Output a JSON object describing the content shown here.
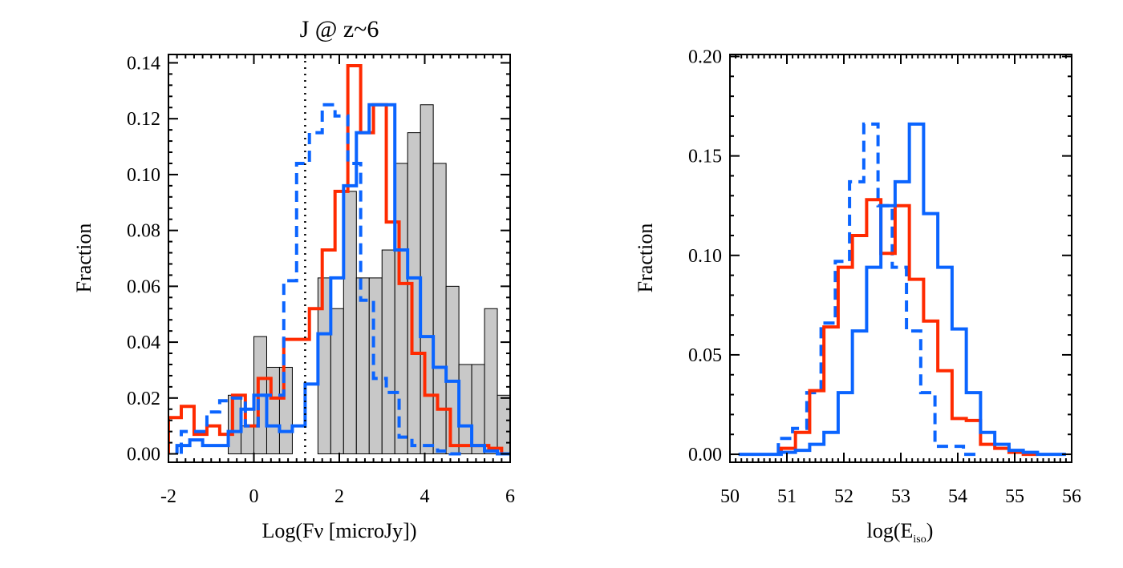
{
  "chart_data": [
    {
      "type": "histogram",
      "title": "J @ z~6",
      "xlabel": "Log(Fν [microJy])",
      "ylabel": "Fraction",
      "xlim": [
        -2,
        6
      ],
      "ylim": [
        -0.003,
        0.143
      ],
      "xticks": [
        -2,
        0,
        2,
        4,
        6
      ],
      "yticks": [
        0.0,
        0.02,
        0.04,
        0.06,
        0.08,
        0.1,
        0.12,
        0.14
      ],
      "ytick_labels": [
        "0.00",
        "0.02",
        "0.04",
        "0.06",
        "0.08",
        "0.10",
        "0.12",
        "0.14"
      ],
      "vline": {
        "x": 1.2,
        "style": "dotted",
        "color": "#000000"
      },
      "series": [
        {
          "style": "filled-bars",
          "fill": "#c8c8c8",
          "stroke": "#000000",
          "bin_width": 0.3,
          "x_start": -0.6,
          "values": [
            0.021,
            0.01,
            0.042,
            0.031,
            0.031,
            0.0,
            0.0,
            0.063,
            0.052,
            0.094,
            0.063,
            0.063,
            0.073,
            0.104,
            0.115,
            0.125,
            0.104,
            0.06,
            0.032,
            0.032,
            0.052,
            0.021,
            0.01,
            0.0,
            0.0,
            0.01,
            0.0
          ]
        },
        {
          "style": "step",
          "color": "#ff2a00",
          "dash": "solid",
          "bin_width": 0.3,
          "x_start": -2.0,
          "values": [
            0.013,
            0.017,
            0.007,
            0.01,
            0.007,
            0.021,
            0.01,
            0.027,
            0.02,
            0.041,
            0.041,
            0.052,
            0.073,
            0.094,
            0.139,
            0.115,
            0.125,
            0.083,
            0.061,
            0.036,
            0.021,
            0.016,
            0.003,
            0.003,
            0.003,
            0.002,
            0.0
          ]
        },
        {
          "style": "step",
          "color": "#0a64ff",
          "dash": "dashed",
          "bin_width": 0.3,
          "x_start": -1.7,
          "values": [
            0.008,
            0.008,
            0.015,
            0.019,
            0.02,
            0.01,
            0.021,
            0.021,
            0.062,
            0.104,
            0.115,
            0.125,
            0.121,
            0.104,
            0.055,
            0.027,
            0.022,
            0.006,
            0.003,
            0.003,
            0.001,
            0.0
          ]
        },
        {
          "style": "step",
          "color": "#0a64ff",
          "dash": "solid",
          "bin_width": 0.3,
          "x_start": -1.8,
          "values": [
            0.003,
            0.005,
            0.003,
            0.003,
            0.008,
            0.016,
            0.021,
            0.01,
            0.008,
            0.01,
            0.025,
            0.043,
            0.063,
            0.096,
            0.115,
            0.125,
            0.125,
            0.073,
            0.063,
            0.042,
            0.031,
            0.026,
            0.01,
            0.003,
            0.001,
            0.0,
            0.0
          ]
        }
      ]
    },
    {
      "type": "histogram",
      "title": "",
      "xlabel": "log(E",
      "xlabel_sub": "iso",
      "xlabel_tail": ")",
      "ylabel": "Fraction",
      "xlim": [
        50,
        56
      ],
      "ylim": [
        -0.004,
        0.201
      ],
      "xticks": [
        50,
        51,
        52,
        53,
        54,
        55,
        56
      ],
      "yticks": [
        0.0,
        0.05,
        0.1,
        0.15,
        0.2
      ],
      "ytick_labels": [
        "0.00",
        "0.05",
        "0.10",
        "0.15",
        "0.20"
      ],
      "series": [
        {
          "style": "step",
          "color": "#0a64ff",
          "dash": "dashed",
          "bin_width": 0.25,
          "x_start": 50.85,
          "values": [
            0.008,
            0.013,
            0.031,
            0.066,
            0.097,
            0.137,
            0.166,
            0.125,
            0.094,
            0.062,
            0.031,
            0.004,
            0.004,
            0.0
          ]
        },
        {
          "style": "step",
          "color": "#ff2a00",
          "dash": "solid",
          "bin_width": 0.25,
          "x_start": 50.9,
          "values": [
            0.003,
            0.011,
            0.032,
            0.064,
            0.094,
            0.11,
            0.128,
            0.101,
            0.125,
            0.088,
            0.067,
            0.042,
            0.018,
            0.017,
            0.005,
            0.003,
            0.001,
            0.0
          ]
        },
        {
          "style": "step",
          "color": "#0a64ff",
          "dash": "solid",
          "bin_width": 0.25,
          "x_start": 50.15,
          "values": [
            0.0,
            0.0,
            0.0,
            0.001,
            0.002,
            0.005,
            0.011,
            0.031,
            0.062,
            0.094,
            0.125,
            0.137,
            0.166,
            0.121,
            0.094,
            0.063,
            0.031,
            0.011,
            0.005,
            0.002,
            0.001,
            0.0,
            0.0
          ]
        }
      ]
    }
  ]
}
